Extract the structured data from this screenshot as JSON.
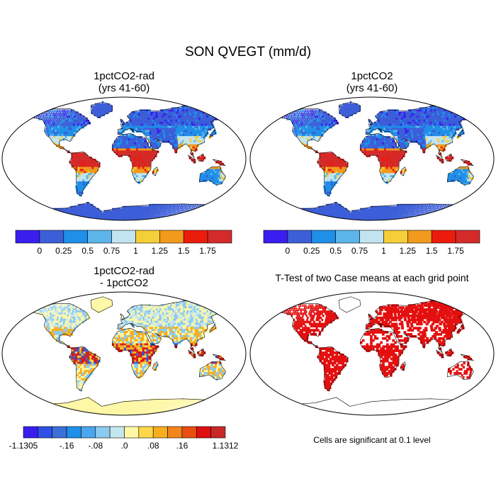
{
  "title": "SON QVEGT (mm/d)",
  "panels": [
    {
      "title_line1": "1pctCO2-rad",
      "title_line2": "(yrs 41-60)"
    },
    {
      "title_line1": "1pctCO2",
      "title_line2": "(yrs 41-60)"
    },
    {
      "title_line1": "1pctCO2-rad",
      "title_line2": "- 1pctCO2"
    },
    {
      "title_line1": "T-Test of two Case means at each grid point",
      "title_line2": ""
    }
  ],
  "note": "Cells are significant at 0.1 level",
  "colors": {
    "abs": [
      "#3a1ef0",
      "#3c5ed8",
      "#1f8fe8",
      "#5cb6ec",
      "#c2e4f0",
      "#f5cf3a",
      "#f29a1c",
      "#ec1c0c",
      "#d42a2a"
    ],
    "diff": [
      "#3a1ef0",
      "#2f4fe6",
      "#3c6fd8",
      "#1f8fe8",
      "#4aa6ee",
      "#8ccaf0",
      "#c4e6ef",
      "#fdf7a6",
      "#fcd84a",
      "#f7ae1e",
      "#f3861a",
      "#e84e12",
      "#e01010",
      "#c82828"
    ],
    "sig": "#e41010",
    "land_outline": "#000000"
  },
  "chart_data": [
    {
      "type": "heatmap",
      "title": "1pctCO2-rad (yrs 41-60)",
      "colorbar_labels": [
        "0",
        "0.25",
        "0.5",
        "0.75",
        "1",
        "1.25",
        "1.5",
        "1.75"
      ],
      "levels": [
        0,
        0.25,
        0.5,
        0.75,
        1,
        1.25,
        1.5,
        1.75
      ]
    },
    {
      "type": "heatmap",
      "title": "1pctCO2 (yrs 41-60)",
      "colorbar_labels": [
        "0",
        "0.25",
        "0.5",
        "0.75",
        "1",
        "1.25",
        "1.5",
        "1.75"
      ],
      "levels": [
        0,
        0.25,
        0.5,
        0.75,
        1,
        1.25,
        1.5,
        1.75
      ]
    },
    {
      "type": "heatmap",
      "title": "1pctCO2-rad - 1pctCO2",
      "colorbar_labels": [
        "-1.1305",
        "-.16",
        "-.08",
        ".0",
        ".08",
        ".16",
        "1.1312"
      ],
      "levels": [
        -1.1305,
        -0.16,
        -0.08,
        0,
        0.08,
        0.16,
        1.1312
      ]
    },
    {
      "type": "heatmap",
      "title": "T-Test of two Case means at each grid point",
      "significance_level": 0.1
    }
  ]
}
